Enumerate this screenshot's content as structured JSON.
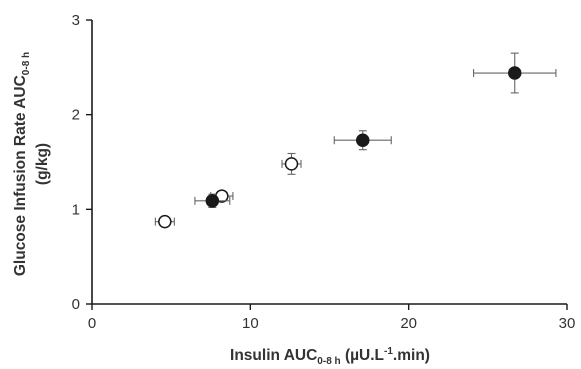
{
  "chart_data": {
    "type": "scatter",
    "title": "",
    "xlabel": {
      "main": "Insulin AUC",
      "sub": "0-8 h",
      "tail_pre": " (µU.L",
      "sup": "-1",
      "tail_post": ".min)"
    },
    "ylabel": {
      "main": "Glucose Infusion Rate AUC",
      "sub": "0-8 h",
      "line2": "(g/kg)"
    },
    "xlim": [
      0,
      30
    ],
    "ylim": [
      0,
      3
    ],
    "xticks": [
      0,
      10,
      20,
      30
    ],
    "xtick_labels": [
      "0",
      "10",
      "20",
      "30"
    ],
    "yticks": [
      0,
      1,
      2,
      3
    ],
    "ytick_labels": [
      "0",
      "1",
      "2",
      "3"
    ],
    "grid": false,
    "series": [
      {
        "marker": "open-circle",
        "color": "#1a1a1a",
        "points": [
          {
            "x": 4.6,
            "y": 0.87,
            "xerr": 0.6,
            "yerr": 0.04
          },
          {
            "x": 8.2,
            "y": 1.14,
            "xerr": 0.7,
            "yerr": 0.05
          },
          {
            "x": 12.6,
            "y": 1.48,
            "xerr": 0.6,
            "yerr": 0.11
          }
        ]
      },
      {
        "marker": "filled-circle",
        "color": "#1a1a1a",
        "points": [
          {
            "x": 7.6,
            "y": 1.09,
            "xerr": 1.1,
            "yerr": 0.07
          },
          {
            "x": 17.1,
            "y": 1.73,
            "xerr": 1.8,
            "yerr": 0.1
          },
          {
            "x": 26.7,
            "y": 2.44,
            "xerr": 2.6,
            "yerr": 0.21
          }
        ]
      }
    ]
  }
}
